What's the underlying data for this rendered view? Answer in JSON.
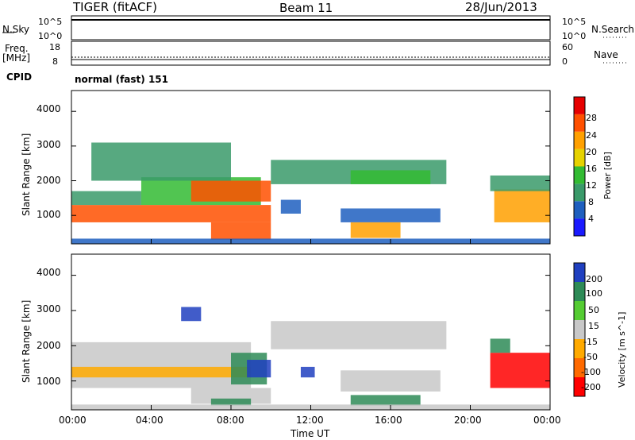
{
  "header": {
    "radar": "TIGER (fitACF)",
    "beam": "Beam 11",
    "date": "28/Jun/2013"
  },
  "sky_panel": {
    "left_label": "N.Sky",
    "left_ticks": [
      "10^5",
      "10^0"
    ],
    "right_label": "N.Search",
    "right_ticks": [
      "10^5",
      "10^0"
    ]
  },
  "freq_panel": {
    "left_label_1": "Freq.",
    "left_label_2": "[MHz]",
    "left_ticks": [
      "18",
      "8"
    ],
    "right_label": "Nave",
    "right_ticks": [
      "60",
      "0"
    ]
  },
  "cpid": {
    "label": "CPID",
    "value": "normal (fast) 151"
  },
  "colors": {
    "power": [
      "#1a1aff",
      "#1f5fbf",
      "#3a9a6a",
      "#33bb33",
      "#e6d200",
      "#ffa000",
      "#ff5000",
      "#e60000"
    ],
    "velocity": [
      "#ff0000",
      "#ff6a00",
      "#ffaa00",
      "#c8c8c8",
      "#55cc33",
      "#2e8b57",
      "#2040c0"
    ]
  },
  "chart_data": [
    {
      "type": "heatmap",
      "title": "",
      "xlabel": "Time UT",
      "ylabel": "Slant Range [km]",
      "x_ticks": [
        "00:00",
        "04:00",
        "08:00",
        "12:00",
        "16:00",
        "20:00",
        "00:00"
      ],
      "xlim": [
        0,
        24
      ],
      "y_ticks": [
        "1000",
        "2000",
        "3000",
        "4000"
      ],
      "ylim": [
        180,
        4600
      ],
      "colorbar": {
        "label": "Power [dB]",
        "ticks": [
          "4",
          "8",
          "12",
          "16",
          "20",
          "24",
          "28"
        ],
        "range": [
          0,
          32
        ]
      },
      "regions": [
        {
          "t0": 0.0,
          "t1": 10.0,
          "r0": 800,
          "r1": 1300,
          "value": 25
        },
        {
          "t0": 0.0,
          "t1": 3.5,
          "r0": 1300,
          "r1": 1700,
          "value": 11
        },
        {
          "t0": 3.5,
          "t1": 9.5,
          "r0": 1300,
          "r1": 2100,
          "value": 13
        },
        {
          "t0": 6.0,
          "t1": 10.0,
          "r0": 1400,
          "r1": 2000,
          "value": 24
        },
        {
          "t0": 7.0,
          "t1": 10.0,
          "r0": 300,
          "r1": 800,
          "value": 27
        },
        {
          "t0": 1.0,
          "t1": 8.0,
          "r0": 2000,
          "r1": 3100,
          "value": 9
        },
        {
          "t0": 10.0,
          "t1": 18.8,
          "r0": 1900,
          "r1": 2600,
          "value": 9
        },
        {
          "t0": 14.0,
          "t1": 18.0,
          "r0": 1900,
          "r1": 2300,
          "value": 13
        },
        {
          "t0": 13.5,
          "t1": 18.5,
          "r0": 800,
          "r1": 1200,
          "value": 7
        },
        {
          "t0": 14.0,
          "t1": 16.5,
          "r0": 350,
          "r1": 800,
          "value": 22
        },
        {
          "t0": 10.5,
          "t1": 11.5,
          "r0": 1050,
          "r1": 1450,
          "value": 7
        },
        {
          "t0": 21.2,
          "t1": 24.0,
          "r0": 800,
          "r1": 1750,
          "value": 23
        },
        {
          "t0": 21.0,
          "t1": 24.0,
          "r0": 1700,
          "r1": 2150,
          "value": 10
        },
        {
          "t0": 0.0,
          "t1": 24.0,
          "r0": 180,
          "r1": 330,
          "value": 7
        }
      ]
    },
    {
      "type": "heatmap",
      "title": "",
      "xlabel": "Time UT",
      "ylabel": "Slant Range [km]",
      "x_ticks": [
        "00:00",
        "04:00",
        "08:00",
        "12:00",
        "16:00",
        "20:00",
        "00:00"
      ],
      "xlim": [
        0,
        24
      ],
      "y_ticks": [
        "1000",
        "2000",
        "3000",
        "4000"
      ],
      "ylim": [
        180,
        4600
      ],
      "colorbar": {
        "label": "Velocity [m s^-1]",
        "ticks": [
          "200",
          "100",
          "50",
          "15",
          "-15",
          "-50",
          "-100",
          "-200"
        ]
      },
      "regions": [
        {
          "t0": 0.0,
          "t1": 9.0,
          "r0": 800,
          "r1": 2100,
          "value": 0
        },
        {
          "t0": 0.0,
          "t1": 9.0,
          "r0": 1100,
          "r1": 1400,
          "value": -50
        },
        {
          "t0": 8.0,
          "t1": 9.8,
          "r0": 900,
          "r1": 1800,
          "value": 50
        },
        {
          "t0": 8.8,
          "t1": 10.0,
          "r0": 1100,
          "r1": 1600,
          "value": 200
        },
        {
          "t0": 6.0,
          "t1": 10.0,
          "r0": 350,
          "r1": 800,
          "value": 0
        },
        {
          "t0": 7.0,
          "t1": 9.0,
          "r0": 300,
          "r1": 500,
          "value": 50
        },
        {
          "t0": 5.5,
          "t1": 6.5,
          "r0": 2700,
          "r1": 3100,
          "value": 200
        },
        {
          "t0": 10.0,
          "t1": 18.8,
          "r0": 1900,
          "r1": 2700,
          "value": 0
        },
        {
          "t0": 11.5,
          "t1": 12.2,
          "r0": 1100,
          "r1": 1400,
          "value": 200
        },
        {
          "t0": 13.5,
          "t1": 18.5,
          "r0": 700,
          "r1": 1300,
          "value": 0
        },
        {
          "t0": 14.0,
          "t1": 17.5,
          "r0": 300,
          "r1": 600,
          "value": 50
        },
        {
          "t0": 21.0,
          "t1": 24.0,
          "r0": 800,
          "r1": 1800,
          "value": -200
        },
        {
          "t0": 21.0,
          "t1": 22.0,
          "r0": 1800,
          "r1": 2200,
          "value": 50
        },
        {
          "t0": 0.0,
          "t1": 24.0,
          "r0": 180,
          "r1": 330,
          "value": 0
        }
      ]
    }
  ]
}
